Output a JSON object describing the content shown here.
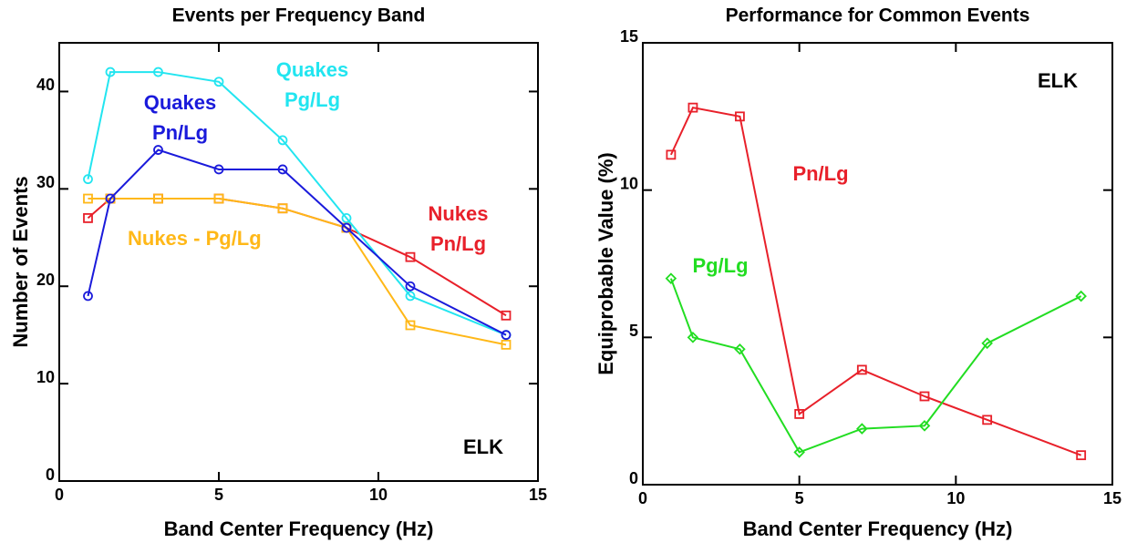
{
  "chart_data": [
    {
      "type": "line",
      "title": "Events per Frequency Band",
      "x_label": "Band Center Frequency (Hz)",
      "y_label": "Number of Events",
      "x": [
        0.9,
        1.6,
        3.1,
        5,
        7,
        9,
        11,
        14
      ],
      "xlim": [
        0,
        15
      ],
      "xticks": [
        0,
        5,
        10,
        15
      ],
      "ylim": [
        0,
        45
      ],
      "yticks": [
        0,
        10,
        20,
        30,
        40
      ],
      "annotation": "ELK",
      "series": [
        {
          "name": "Nukes Pn/Lg",
          "color": "#e8202a",
          "marker": "square",
          "values": [
            27,
            29,
            29,
            29,
            28,
            26,
            23,
            17
          ]
        },
        {
          "name": "Nukes - Pg/Lg",
          "color": "#ffb818",
          "marker": "square",
          "values": [
            29,
            29,
            29,
            29,
            28,
            26,
            16,
            14
          ]
        },
        {
          "name": "Quakes Pg/Lg",
          "color": "#22e5f0",
          "marker": "circle",
          "values": [
            31,
            42,
            42,
            41,
            35,
            27,
            19,
            15
          ]
        },
        {
          "name": "Quakes Pn/Lg",
          "color": "#1a1adb",
          "marker": "circle",
          "values": [
            19,
            29,
            34,
            32,
            32,
            26,
            20,
            15
          ]
        }
      ]
    },
    {
      "type": "line",
      "title": "Performance for Common Events",
      "x_label": "Band Center Frequency (Hz)",
      "y_label": "Equiprobable Value (%)",
      "x": [
        0.9,
        1.6,
        3.1,
        5,
        7,
        9,
        11,
        14
      ],
      "xlim": [
        0,
        15
      ],
      "xticks": [
        0,
        5,
        10,
        15
      ],
      "ylim": [
        0,
        15
      ],
      "yticks": [
        0,
        5,
        10,
        15
      ],
      "annotation": "ELK",
      "series": [
        {
          "name": "Pn/Lg",
          "color": "#e8202a",
          "marker": "square",
          "values": [
            11.2,
            12.8,
            12.5,
            2.4,
            3.9,
            3.0,
            2.2,
            1.0
          ]
        },
        {
          "name": "Pg/Lg",
          "color": "#22dd22",
          "marker": "diamond",
          "values": [
            7.0,
            5.0,
            4.6,
            1.1,
            1.9,
            2.0,
            4.8,
            6.4
          ]
        }
      ]
    }
  ]
}
